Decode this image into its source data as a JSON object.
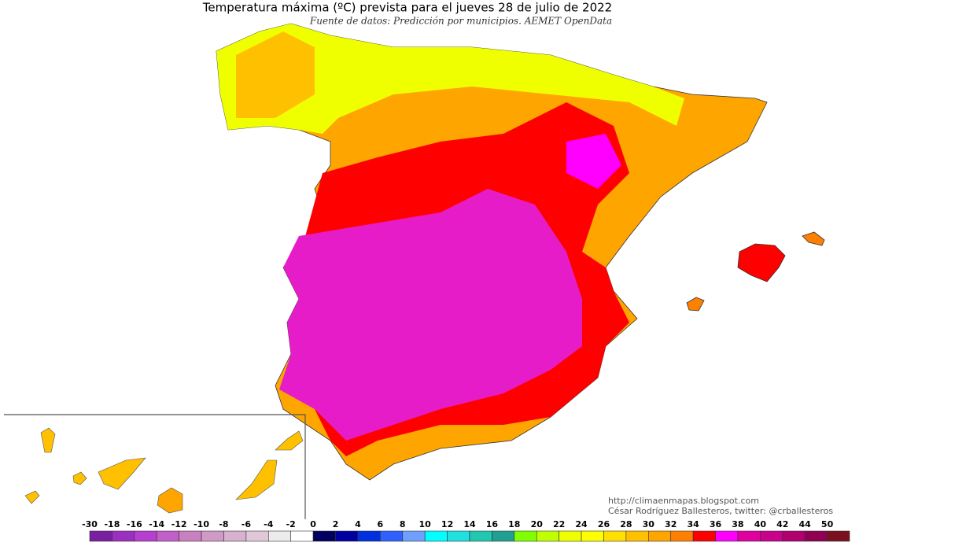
{
  "header": {
    "title": "Temperatura máxima (ºC) prevista para el jueves 28 de julio de 2022",
    "subtitle": "Fuente de datos: Predicción por municipios. AEMET OpenData"
  },
  "credits": [
    "http://climaenmapas.blogspot.com",
    "César Rodríguez Ballesteros, twitter: @crballesteros"
  ],
  "legend": {
    "labels": [
      -30,
      -18,
      -16,
      -14,
      -12,
      -10,
      -8,
      -6,
      -4,
      -2,
      0,
      2,
      4,
      6,
      8,
      10,
      12,
      14,
      16,
      18,
      20,
      22,
      24,
      26,
      28,
      30,
      32,
      34,
      36,
      38,
      40,
      42,
      44,
      50
    ],
    "colors": [
      "#7a1fa2",
      "#9b2fc0",
      "#b63fd0",
      "#c060c8",
      "#c880c0",
      "#d09ac8",
      "#d8b0d0",
      "#e0c8d8",
      "#ececec",
      "#ffffff",
      "#000060",
      "#0000a0",
      "#0030e0",
      "#3060ff",
      "#70a0ff",
      "#00ffff",
      "#20e0e0",
      "#20c8b0",
      "#20a090",
      "#80ff00",
      "#c0ff00",
      "#f0ff00",
      "#ffff00",
      "#ffe000",
      "#ffc000",
      "#ffa500",
      "#ff8000",
      "#ff0000",
      "#ff00ff",
      "#e000a0",
      "#c8008c",
      "#b00070",
      "#900050",
      "#7a1020"
    ]
  }
}
